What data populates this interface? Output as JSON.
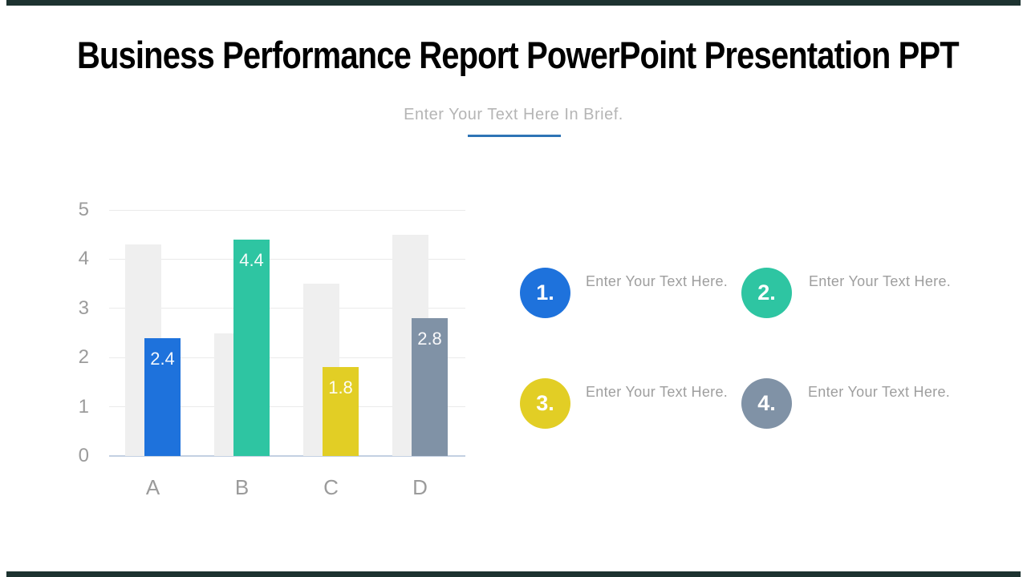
{
  "slide": {
    "title": "Business Performance Report PowerPoint Presentation PPT",
    "subtitle": "Enter Your Text Here In Brief.",
    "underline_color": "#2e74b5",
    "edge_bar_color": "#1d3330"
  },
  "chart_data": {
    "type": "bar",
    "title": "",
    "xlabel": "",
    "ylabel": "",
    "categories": [
      "A",
      "B",
      "C",
      "D"
    ],
    "series": [
      {
        "name": "background-total",
        "values": [
          4.3,
          2.5,
          3.5,
          4.5
        ],
        "color": "#efefef"
      },
      {
        "name": "highlight-value",
        "values": [
          2.4,
          4.4,
          1.8,
          2.8
        ],
        "labels": [
          "2.4",
          "4.4",
          "1.8",
          "2.8"
        ],
        "colors": [
          "#1e72dc",
          "#2ec5a2",
          "#e2ce25",
          "#8092a6"
        ]
      }
    ],
    "ylim": [
      0,
      5
    ],
    "yticks": [
      0,
      1,
      2,
      3,
      4,
      5
    ],
    "grid": true,
    "legend": "none",
    "axis_text_color": "#9b9b9b"
  },
  "items": [
    {
      "number": "1.",
      "text": "Enter Your Text Here.",
      "color": "#1e72dc"
    },
    {
      "number": "2.",
      "text": "Enter Your Text Here.",
      "color": "#2ec5a2"
    },
    {
      "number": "3.",
      "text": "Enter Your Text Here.",
      "color": "#e2ce25"
    },
    {
      "number": "4.",
      "text": "Enter Your Text Here.",
      "color": "#8092a6"
    }
  ]
}
